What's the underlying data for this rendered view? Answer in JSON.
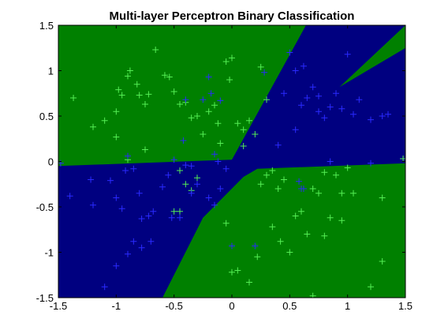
{
  "chart_data": {
    "type": "scatter",
    "title": "Multi-layer Perceptron Binary Classification",
    "xlabel": "",
    "ylabel": "",
    "xlim": [
      -1.5,
      1.5
    ],
    "ylim": [
      -1.5,
      1.5
    ],
    "xticks": [
      "-1.5",
      "-1",
      "-0.5",
      "0",
      "0.5",
      "1",
      "1.5"
    ],
    "yticks": [
      "-1.5",
      "-1",
      "-0.5",
      "0",
      "0.5",
      "1",
      "1.5"
    ],
    "xtick_values": [
      -1.5,
      -1,
      -0.5,
      0,
      0.5,
      1,
      1.5
    ],
    "ytick_values": [
      -1.5,
      -1,
      -0.5,
      0,
      0.5,
      1,
      1.5
    ],
    "grid": false,
    "legend": "none",
    "colors": {
      "region_green": "#008000",
      "region_blue": "#000080",
      "points_green": "#55ee55",
      "points_blue": "#2a2aff"
    },
    "regions": [
      {
        "class": "green",
        "polygon": [
          [
            -1.5,
            1.5
          ],
          [
            0.64,
            1.5
          ],
          [
            0.0,
            0.02
          ],
          [
            -1.5,
            -0.05
          ]
        ]
      },
      {
        "class": "green",
        "polygon": [
          [
            -0.6,
            -1.5
          ],
          [
            1.5,
            -1.5
          ],
          [
            1.5,
            -0.02
          ],
          [
            0.22,
            -0.08
          ],
          [
            0.1,
            -0.17
          ],
          [
            -0.25,
            -0.62
          ]
        ]
      },
      {
        "class": "green",
        "polygon": [
          [
            0.93,
            0.82
          ],
          [
            1.5,
            1.5
          ],
          [
            1.5,
            1.25
          ]
        ]
      }
    ],
    "series": [
      {
        "marker": "+",
        "color": "#55ee55",
        "points": [
          [
            -1.37,
            0.7
          ],
          [
            -1.2,
            0.38
          ],
          [
            -1.1,
            0.45
          ],
          [
            -1.0,
            0.27
          ],
          [
            -1.0,
            0.55
          ],
          [
            -0.98,
            0.79
          ],
          [
            -0.95,
            0.73
          ],
          [
            -0.9,
            0.94
          ],
          [
            -0.88,
            1.0
          ],
          [
            -0.82,
            0.85
          ],
          [
            -0.8,
            0.73
          ],
          [
            -0.75,
            0.63
          ],
          [
            -0.72,
            0.74
          ],
          [
            -0.66,
            1.23
          ],
          [
            -0.58,
            0.95
          ],
          [
            -0.54,
            0.93
          ],
          [
            -0.5,
            0.77
          ],
          [
            -0.45,
            0.63
          ],
          [
            -0.4,
            0.65
          ],
          [
            -0.35,
            0.48
          ],
          [
            -0.3,
            0.5
          ],
          [
            -0.25,
            0.3
          ],
          [
            -0.2,
            0.55
          ],
          [
            -0.15,
            0.62
          ],
          [
            -0.12,
            0.42
          ],
          [
            -0.1,
            0.2
          ],
          [
            -0.05,
            1.1
          ],
          [
            -0.02,
            0.9
          ],
          [
            0.0,
            1.14
          ],
          [
            0.05,
            0.42
          ],
          [
            0.1,
            0.35
          ],
          [
            0.15,
            0.45
          ],
          [
            0.25,
            1.04
          ],
          [
            0.3,
            0.68
          ],
          [
            0.2,
            0.3
          ],
          [
            0.1,
            0.17
          ],
          [
            -0.75,
            0.13
          ],
          [
            -0.9,
            0.02
          ],
          [
            -0.35,
            -0.32
          ],
          [
            -0.4,
            -0.25
          ],
          [
            -0.45,
            -0.1
          ],
          [
            -0.3,
            -0.18
          ],
          [
            -0.5,
            -0.55
          ],
          [
            -0.45,
            -0.55
          ],
          [
            0.25,
            -0.25
          ],
          [
            0.3,
            -0.15
          ],
          [
            0.35,
            -0.1
          ],
          [
            0.4,
            -0.3
          ],
          [
            0.45,
            -0.2
          ],
          [
            0.55,
            -0.6
          ],
          [
            0.6,
            -0.55
          ],
          [
            0.65,
            -0.8
          ],
          [
            0.7,
            -0.3
          ],
          [
            0.75,
            -0.35
          ],
          [
            0.8,
            -0.12
          ],
          [
            0.85,
            -0.62
          ],
          [
            0.9,
            -0.15
          ],
          [
            0.95,
            -0.35
          ],
          [
            1.0,
            -0.07
          ],
          [
            1.05,
            -0.35
          ],
          [
            0.95,
            -0.65
          ],
          [
            0.8,
            -0.82
          ],
          [
            0.42,
            -0.88
          ],
          [
            0.22,
            -1.05
          ],
          [
            0.15,
            -1.33
          ],
          [
            0.05,
            -1.2
          ],
          [
            0.0,
            -1.22
          ],
          [
            -0.05,
            -0.68
          ],
          [
            0.35,
            -0.72
          ],
          [
            0.5,
            -1.0
          ],
          [
            0.7,
            -1.48
          ],
          [
            1.2,
            -1.38
          ],
          [
            1.3,
            -1.1
          ],
          [
            1.3,
            -0.4
          ],
          [
            1.48,
            0.03
          ]
        ]
      },
      {
        "marker": "+",
        "color": "#2a2aff",
        "points": [
          [
            -1.48,
            -0.02
          ],
          [
            -1.4,
            -0.38
          ],
          [
            -1.22,
            -0.2
          ],
          [
            -1.05,
            -0.21
          ],
          [
            -1.0,
            -0.4
          ],
          [
            -0.95,
            -0.52
          ],
          [
            -0.92,
            -0.1
          ],
          [
            -0.9,
            0.06
          ],
          [
            -0.85,
            -0.08
          ],
          [
            -0.8,
            -0.35
          ],
          [
            -0.78,
            -0.63
          ],
          [
            -0.72,
            -0.6
          ],
          [
            -0.68,
            -0.55
          ],
          [
            -0.7,
            -0.88
          ],
          [
            -0.78,
            -0.95
          ],
          [
            -0.85,
            -0.88
          ],
          [
            -0.9,
            -1.02
          ],
          [
            -1.0,
            -1.15
          ],
          [
            -1.1,
            -1.38
          ],
          [
            -1.2,
            -0.48
          ],
          [
            -0.6,
            -0.28
          ],
          [
            -0.55,
            -0.15
          ],
          [
            -0.52,
            -0.62
          ],
          [
            -0.45,
            -0.62
          ],
          [
            -0.35,
            -0.35
          ],
          [
            -0.3,
            -0.25
          ],
          [
            -0.2,
            -0.4
          ],
          [
            -0.15,
            -0.48
          ],
          [
            -0.1,
            -0.3
          ],
          [
            -0.05,
            -0.08
          ],
          [
            -0.4,
            -0.04
          ],
          [
            -0.35,
            -0.05
          ],
          [
            -0.5,
            0.02
          ],
          [
            -0.42,
            0.23
          ],
          [
            -0.4,
            0.68
          ],
          [
            -0.25,
            0.68
          ],
          [
            -0.2,
            0.93
          ],
          [
            -0.18,
            0.75
          ],
          [
            -0.1,
            0.67
          ],
          [
            -0.15,
            0.08
          ],
          [
            -0.12,
            0.0
          ],
          [
            0.0,
            -0.93
          ],
          [
            0.2,
            -0.93
          ],
          [
            0.55,
            0.35
          ],
          [
            0.6,
            0.62
          ],
          [
            0.62,
            1.05
          ],
          [
            0.7,
            0.82
          ],
          [
            0.75,
            0.55
          ],
          [
            0.8,
            0.48
          ],
          [
            0.85,
            0.6
          ],
          [
            0.9,
            0.75
          ],
          [
            0.95,
            0.58
          ],
          [
            1.0,
            1.18
          ],
          [
            1.05,
            0.52
          ],
          [
            1.1,
            0.68
          ],
          [
            1.2,
            0.46
          ],
          [
            1.3,
            0.5
          ],
          [
            1.35,
            0.52
          ],
          [
            0.45,
            0.75
          ],
          [
            0.5,
            1.2
          ],
          [
            0.55,
            1.0
          ],
          [
            0.65,
            0.7
          ],
          [
            0.75,
            0.72
          ],
          [
            0.28,
            0.98
          ],
          [
            0.4,
            0.18
          ],
          [
            0.58,
            -0.22
          ],
          [
            0.6,
            -0.3
          ],
          [
            0.62,
            -0.3
          ],
          [
            0.85,
            0.0
          ],
          [
            1.2,
            -0.02
          ]
        ]
      }
    ]
  }
}
